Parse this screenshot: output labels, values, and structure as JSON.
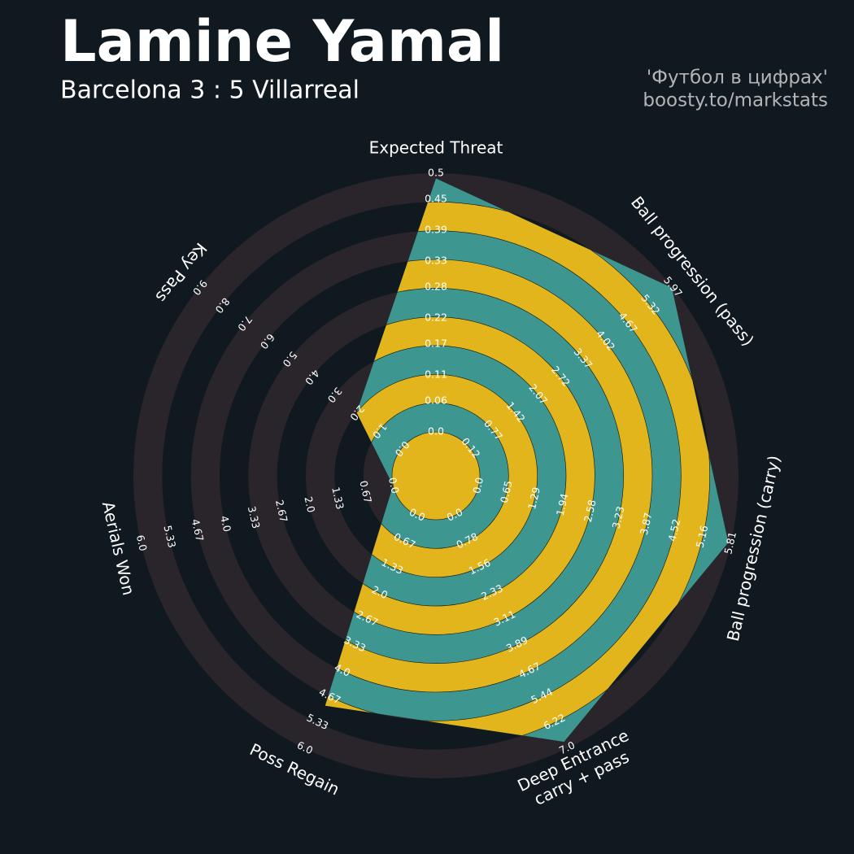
{
  "chart_data": {
    "type": "radar",
    "title": "Lamine Yamal",
    "subtitle": "Barcelona 3 : 5 Villarreal",
    "credits": [
      "'Футбол в цифрах'",
      "boosty.to/markstats"
    ],
    "categories": [
      [
        "Expected Threat"
      ],
      [
        "Ball progression (pass)"
      ],
      [
        "Ball progression (carry)"
      ],
      [
        "Deep Entrance",
        "carry + pass"
      ],
      [
        "Poss Regain"
      ],
      [
        "Aerials Won"
      ],
      [
        "Key Pass"
      ]
    ],
    "values": [
      0.49,
      5.95,
      5.75,
      6.8,
      4.9,
      0,
      2
    ],
    "axes": [
      {
        "lim": [
          0,
          0.5
        ],
        "ticks": [
          {
            "value": 0,
            "label": "0.0"
          },
          0.06,
          0.11,
          0.17,
          0.22,
          0.28,
          0.33,
          0.39,
          0.45,
          0.5
        ]
      },
      {
        "lim": [
          0.12,
          5.97
        ],
        "ticks": [
          0.12,
          0.77,
          1.42,
          2.07,
          2.72,
          3.37,
          4.02,
          4.67,
          5.32,
          5.97
        ]
      },
      {
        "lim": [
          0,
          5.81
        ],
        "ticks": [
          {
            "value": 0,
            "label": "0.0"
          },
          0.65,
          1.29,
          1.94,
          2.58,
          3.23,
          3.87,
          4.52,
          5.16,
          5.81
        ]
      },
      {
        "lim": [
          0,
          7
        ],
        "ticks": [
          {
            "value": 0,
            "label": "0.0"
          },
          0.78,
          1.56,
          2.33,
          3.11,
          3.89,
          4.67,
          5.44,
          6.22,
          {
            "value": 7,
            "label": "7.0"
          }
        ]
      },
      {
        "lim": [
          0,
          6
        ],
        "ticks": [
          {
            "value": 0,
            "label": "0.0"
          },
          0.67,
          1.33,
          {
            "value": 2,
            "label": "2.0"
          },
          2.67,
          3.33,
          {
            "value": 4,
            "label": "4.0"
          },
          4.67,
          5.33,
          {
            "value": 6,
            "label": "6.0"
          }
        ]
      },
      {
        "lim": [
          0,
          6
        ],
        "ticks": [
          {
            "value": 0,
            "label": "0.0"
          },
          0.67,
          1.33,
          {
            "value": 2,
            "label": "2.0"
          },
          2.67,
          3.33,
          {
            "value": 4,
            "label": "4.0"
          },
          4.67,
          5.33,
          {
            "value": 6,
            "label": "6.0"
          }
        ]
      },
      {
        "lim": [
          0,
          9
        ],
        "ticks": [
          {
            "value": 0,
            "label": "0.0"
          },
          {
            "value": 1,
            "label": "1.0"
          },
          {
            "value": 2,
            "label": "2.0"
          },
          {
            "value": 3,
            "label": "3.0"
          },
          {
            "value": 4,
            "label": "4.0"
          },
          {
            "value": 5,
            "label": "5.0"
          },
          {
            "value": 6,
            "label": "6.0"
          },
          {
            "value": 7,
            "label": "7.0"
          },
          {
            "value": 8,
            "label": "8.0"
          },
          {
            "value": 9,
            "label": "9.0"
          }
        ]
      }
    ],
    "ring_color": "#29252b",
    "fill_color": "#3d9690",
    "band_color": "#e2b51c",
    "background": "#101820"
  }
}
